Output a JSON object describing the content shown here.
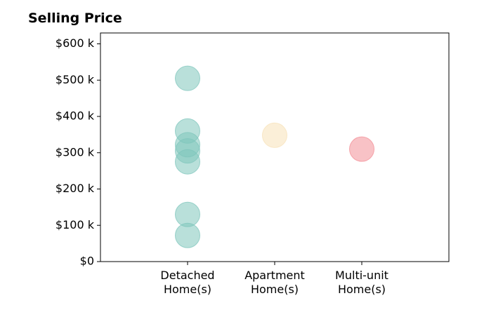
{
  "chart_data": {
    "type": "scatter",
    "title": "Selling Price",
    "xlabel": "",
    "ylabel": "",
    "categories": [
      [
        "Detached",
        "Home(s)"
      ],
      [
        "Apartment",
        "Home(s)"
      ],
      [
        "Multi-unit",
        "Home(s)"
      ]
    ],
    "ylim": [
      0,
      630000
    ],
    "yticks": [
      0,
      100000,
      200000,
      300000,
      400000,
      500000,
      600000
    ],
    "ytick_labels": [
      "$0",
      "$100 k",
      "$200 k",
      "$300 k",
      "$400 k",
      "$500 k",
      "$600 k"
    ],
    "grid": false,
    "series": [
      {
        "category_index": 0,
        "color": "#7fc6bc",
        "values": [
          505000,
          360000,
          322000,
          305000,
          275000,
          130000,
          72000
        ]
      },
      {
        "category_index": 1,
        "color": "#f7e2b8",
        "values": [
          348000
        ]
      },
      {
        "category_index": 2,
        "color": "#f38f97",
        "values": [
          310000
        ]
      }
    ]
  }
}
